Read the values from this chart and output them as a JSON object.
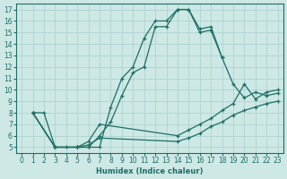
{
  "xlabel": "Humidex (Indice chaleur)",
  "xlim": [
    -0.5,
    23.5
  ],
  "ylim": [
    4.5,
    17.5
  ],
  "xticks": [
    0,
    1,
    2,
    3,
    4,
    5,
    6,
    7,
    8,
    9,
    10,
    11,
    12,
    13,
    14,
    15,
    16,
    17,
    18,
    19,
    20,
    21,
    22,
    23
  ],
  "yticks": [
    5,
    6,
    7,
    8,
    9,
    10,
    11,
    12,
    13,
    14,
    15,
    16,
    17
  ],
  "bg_color": "#cde8e5",
  "grid_color": "#a8d0cc",
  "line_color": "#1e6e65",
  "lines": [
    {
      "x": [
        1,
        2,
        3,
        4,
        5,
        6,
        7,
        8,
        9,
        10,
        11,
        12,
        13,
        14,
        15,
        16,
        17,
        18
      ],
      "y": [
        8.0,
        8.0,
        5.0,
        5.0,
        5.0,
        5.0,
        5.0,
        8.5,
        11.0,
        12.0,
        14.5,
        16.0,
        16.0,
        17.0,
        17.0,
        15.0,
        15.2,
        12.8
      ]
    },
    {
      "x": [
        1,
        3,
        5,
        6,
        7,
        8,
        9,
        10,
        11,
        12,
        13,
        14,
        15,
        16,
        17,
        18,
        19,
        20,
        21,
        22,
        23
      ],
      "y": [
        8.0,
        5.0,
        5.0,
        5.0,
        6.0,
        7.2,
        9.5,
        11.5,
        12.0,
        15.5,
        15.5,
        17.0,
        17.0,
        15.3,
        15.5,
        12.8,
        10.5,
        9.3,
        9.8,
        9.5,
        9.7
      ]
    },
    {
      "x": [
        1,
        3,
        5,
        6,
        7,
        14,
        15,
        16,
        17,
        18,
        19,
        20,
        21,
        22,
        23
      ],
      "y": [
        8.0,
        5.0,
        5.0,
        5.5,
        7.0,
        6.0,
        6.5,
        7.0,
        7.5,
        8.2,
        8.8,
        10.5,
        9.2,
        9.8,
        10.0
      ]
    },
    {
      "x": [
        1,
        3,
        5,
        6,
        7,
        14,
        15,
        16,
        17,
        18,
        19,
        20,
        21,
        22,
        23
      ],
      "y": [
        8.0,
        5.0,
        5.0,
        5.2,
        5.8,
        5.5,
        5.8,
        6.2,
        6.8,
        7.2,
        7.8,
        8.2,
        8.5,
        8.8,
        9.0
      ]
    }
  ]
}
